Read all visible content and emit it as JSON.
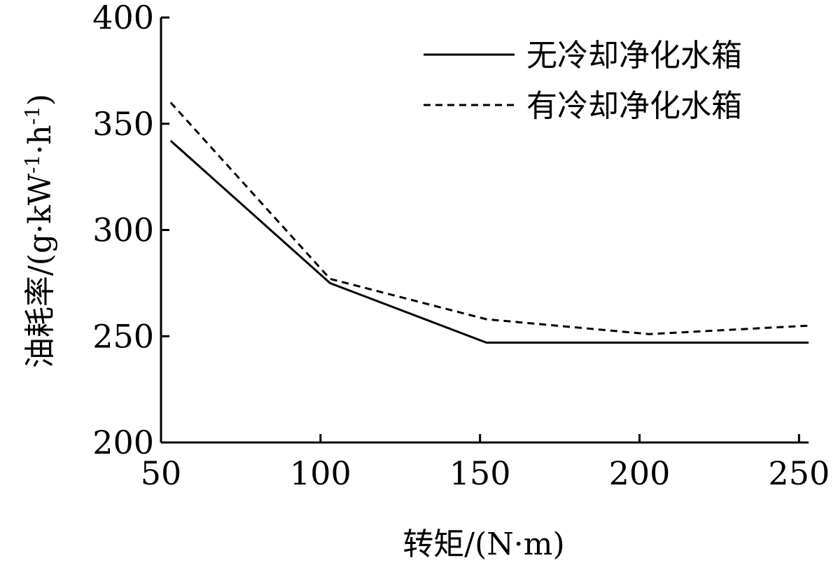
{
  "chart_data": {
    "type": "line",
    "title": "",
    "xlabel": "转矩/(N·m)",
    "ylabel_parts": {
      "base": "油耗率/(g·kW",
      "sup1": "-1",
      "mid": "·h",
      "sup2": "-1",
      "end": ")"
    },
    "x": [
      53,
      103,
      152,
      203,
      253
    ],
    "xlim": [
      50,
      253
    ],
    "ylim": [
      200,
      400
    ],
    "xticks": [
      50,
      100,
      150,
      200,
      250
    ],
    "yticks": [
      200,
      250,
      300,
      350,
      400
    ],
    "grid": false,
    "legend_position": "top-right",
    "series": [
      {
        "name": "无冷却净化水箱",
        "style": "solid",
        "color": "#000000",
        "values": [
          342,
          275,
          247,
          247,
          247
        ]
      },
      {
        "name": "有冷却净化水箱",
        "style": "dashed",
        "color": "#000000",
        "values": [
          360,
          277,
          258,
          251,
          255
        ]
      }
    ]
  }
}
